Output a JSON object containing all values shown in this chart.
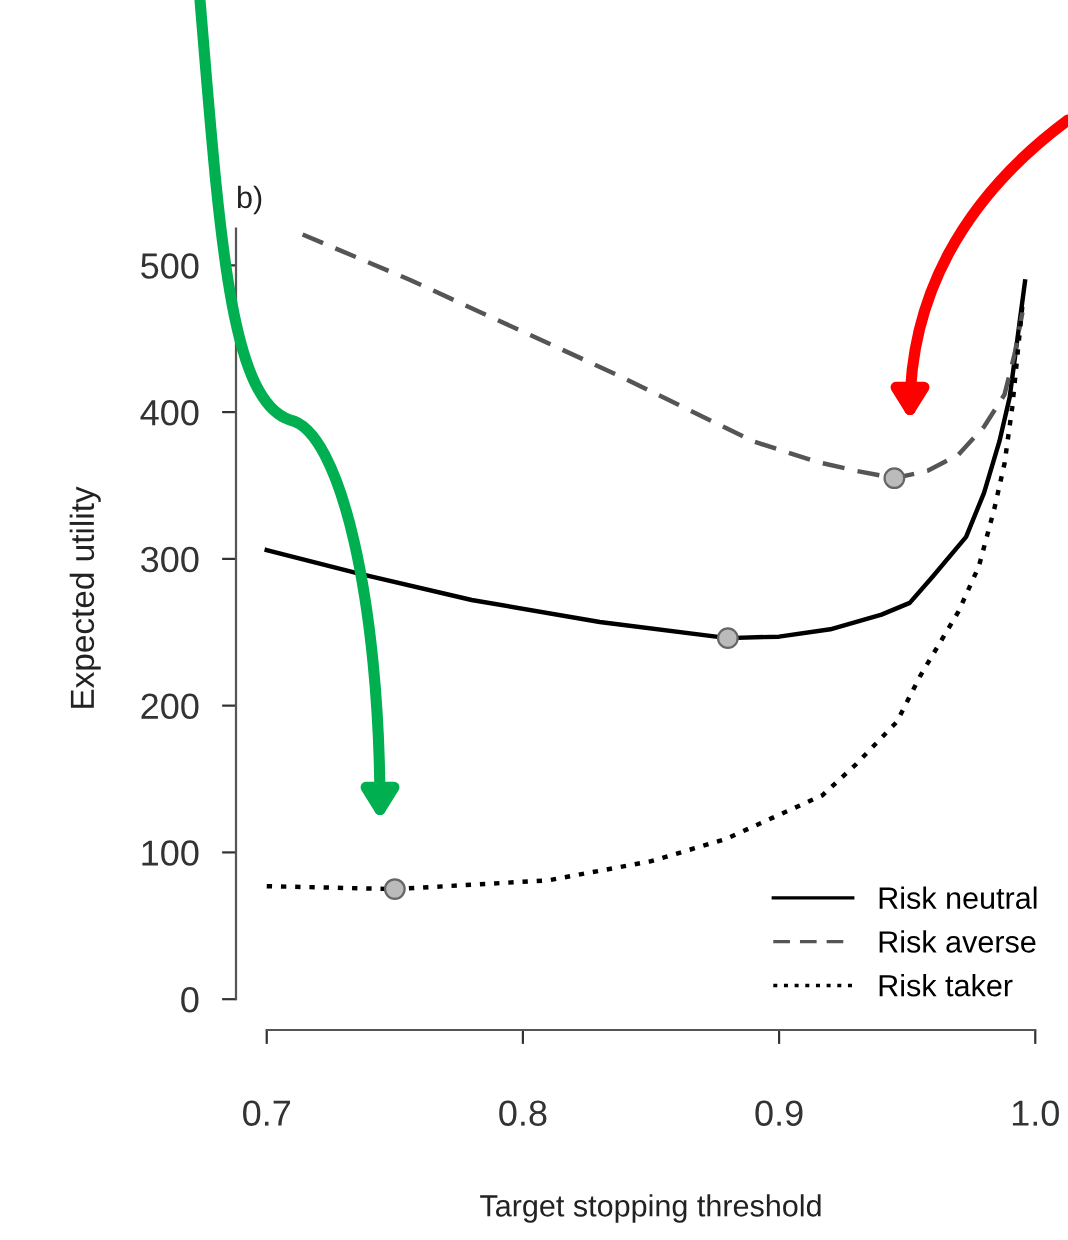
{
  "chart_data": {
    "type": "line",
    "xlabel": "Target stopping threshold",
    "ylabel": "Expected utility",
    "annotations": [
      "b)"
    ],
    "xlim": [
      0.7,
      1.0
    ],
    "ylim": [
      0,
      525
    ],
    "xticks": [
      0.7,
      0.8,
      0.9,
      {
        "value": 1.0,
        "label": "1.0"
      }
    ],
    "yticks": [
      0,
      100,
      200,
      300,
      400,
      500
    ],
    "grid": false,
    "legend": "bottom right",
    "series": [
      {
        "name": "Risk neutral",
        "color": "#000000",
        "line_style": "solid",
        "x": [
          0.7,
          0.736,
          0.78,
          0.83,
          0.88,
          0.9,
          0.92,
          0.94,
          0.951,
          0.96,
          0.973,
          0.98,
          0.986,
          0.99,
          0.996
        ],
        "values": [
          306,
          290,
          272,
          257,
          246,
          247,
          252,
          262,
          270,
          288,
          315,
          345,
          380,
          410,
          489
        ]
      },
      {
        "name": "Risk averse",
        "color": "#555555",
        "line_style": "dashed",
        "x": [
          0.714,
          0.756,
          0.836,
          0.89,
          0.915,
          0.93,
          0.945,
          0.958,
          0.97,
          0.98,
          0.988,
          0.992,
          0.995
        ],
        "values": [
          521,
          490,
          426,
          380,
          366,
          360,
          355,
          360,
          371,
          390,
          412,
          440,
          468
        ]
      },
      {
        "name": "Risk taker",
        "color": "#000000",
        "line_style": "dotted",
        "x": [
          0.7,
          0.75,
          0.81,
          0.85,
          0.879,
          0.917,
          0.93,
          0.946,
          0.955,
          0.97,
          0.978,
          0.984,
          0.988,
          0.991,
          0.995
        ],
        "values": [
          77,
          75,
          81,
          94,
          109,
          139,
          160,
          189,
          220,
          264,
          295,
          334,
          365,
          403,
          473
        ]
      },
      {
        "type": "scatter",
        "color": "#bbbbbb",
        "marker": "circle",
        "x": [
          0.75,
          0.88,
          0.945
        ],
        "values": [
          75,
          246,
          355
        ]
      }
    ]
  }
}
